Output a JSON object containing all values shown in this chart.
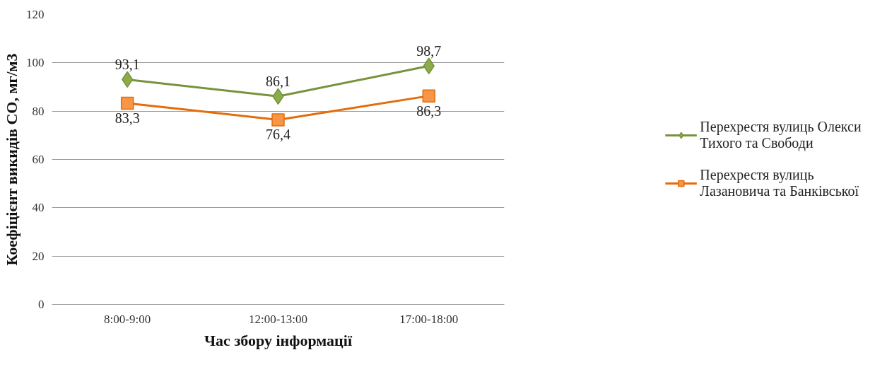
{
  "chart_data": {
    "type": "line",
    "xlabel": "Час збору інформації",
    "ylabel": "Коефіцієнт викидів СО, мг/м3",
    "categories": [
      "8:00-9:00",
      "12:00-13:00",
      "17:00-18:00"
    ],
    "series": [
      {
        "name": "Перехрестя вулиць Олекси Тихого та Свободи",
        "color": "#77933c",
        "marker": "diamond",
        "values": [
          93.1,
          86.1,
          98.7
        ],
        "value_labels": [
          "93,1",
          "86,1",
          "98,7"
        ]
      },
      {
        "name": "Перехрестя вулиць Лазановича та Банківської",
        "color": "#e46c0a",
        "marker": "square",
        "values": [
          83.3,
          76.4,
          86.3
        ],
        "value_labels": [
          "83,3",
          "76,4",
          "86,3"
        ]
      }
    ],
    "ylim": [
      0,
      120
    ],
    "yticks": [
      0,
      20,
      40,
      60,
      80,
      100,
      120
    ],
    "grid": "y",
    "legend": "right"
  }
}
